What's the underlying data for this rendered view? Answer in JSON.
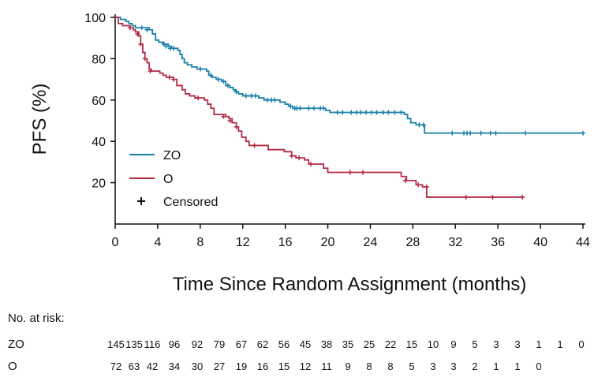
{
  "chart_data": {
    "type": "line",
    "subtype": "kaplan-meier",
    "xlabel": "Time Since Random Assignment (months)",
    "ylabel": "PFS (%)",
    "xlim": [
      0,
      44
    ],
    "ylim": [
      0,
      100
    ],
    "x_ticks": [
      0,
      4,
      8,
      12,
      16,
      20,
      24,
      28,
      32,
      36,
      40,
      44
    ],
    "y_ticks": [
      20,
      40,
      60,
      80,
      100
    ],
    "grid": false,
    "legend": {
      "placement": "bottom-left",
      "entries": [
        {
          "label": "ZO",
          "color": "#1a7fa8",
          "marker": "line"
        },
        {
          "label": "O",
          "color": "#b22a44",
          "marker": "line"
        },
        {
          "label": "Censored",
          "color": "#111111",
          "marker": "plus"
        }
      ]
    },
    "series": [
      {
        "name": "ZO",
        "color": "#1a7fa8",
        "steps": [
          [
            0,
            100
          ],
          [
            0.5,
            99
          ],
          [
            1,
            98
          ],
          [
            1.3,
            97
          ],
          [
            1.6,
            96
          ],
          [
            1.9,
            95
          ],
          [
            3.2,
            94
          ],
          [
            3.5,
            92
          ],
          [
            3.8,
            89
          ],
          [
            4.1,
            88
          ],
          [
            4.5,
            87
          ],
          [
            5,
            86
          ],
          [
            5.3,
            85
          ],
          [
            5.9,
            84
          ],
          [
            6.1,
            82
          ],
          [
            6.3,
            80
          ],
          [
            6.5,
            78
          ],
          [
            6.8,
            77
          ],
          [
            7.2,
            76
          ],
          [
            7.7,
            75
          ],
          [
            8.3,
            75
          ],
          [
            8.6,
            74
          ],
          [
            8.8,
            72
          ],
          [
            9.1,
            71
          ],
          [
            9.5,
            70
          ],
          [
            10,
            69
          ],
          [
            10.4,
            67
          ],
          [
            10.8,
            66
          ],
          [
            11.1,
            65
          ],
          [
            11.3,
            64
          ],
          [
            11.6,
            63
          ],
          [
            12,
            62
          ],
          [
            13.5,
            61
          ],
          [
            14,
            60
          ],
          [
            15.5,
            59
          ],
          [
            16,
            58
          ],
          [
            16.3,
            57
          ],
          [
            16.7,
            56
          ],
          [
            18,
            56
          ],
          [
            19.8,
            55
          ],
          [
            20.2,
            54
          ],
          [
            27.2,
            53
          ],
          [
            27.5,
            51
          ],
          [
            27.8,
            49
          ],
          [
            28.3,
            48
          ],
          [
            29.1,
            44
          ],
          [
            44,
            44
          ]
        ],
        "censored": [
          [
            2.5,
            95
          ],
          [
            3.0,
            94
          ],
          [
            4.6,
            87
          ],
          [
            4.8,
            86
          ],
          [
            5.2,
            85
          ],
          [
            5.5,
            85
          ],
          [
            8.0,
            75
          ],
          [
            9.0,
            72
          ],
          [
            9.7,
            70
          ],
          [
            10.2,
            69
          ],
          [
            10.6,
            67
          ],
          [
            11.4,
            64
          ],
          [
            12.3,
            62
          ],
          [
            12.8,
            62
          ],
          [
            13.2,
            62
          ],
          [
            14.3,
            60
          ],
          [
            14.7,
            60
          ],
          [
            15.0,
            60
          ],
          [
            16.5,
            57
          ],
          [
            16.9,
            56
          ],
          [
            17.1,
            56
          ],
          [
            17.4,
            56
          ],
          [
            18.2,
            56
          ],
          [
            18.7,
            56
          ],
          [
            19.3,
            56
          ],
          [
            19.6,
            56
          ],
          [
            20.9,
            54
          ],
          [
            21.4,
            54
          ],
          [
            22.2,
            54
          ],
          [
            22.7,
            54
          ],
          [
            23.1,
            54
          ],
          [
            23.6,
            54
          ],
          [
            24.1,
            54
          ],
          [
            24.6,
            54
          ],
          [
            25.2,
            54
          ],
          [
            25.7,
            54
          ],
          [
            26.3,
            54
          ],
          [
            26.9,
            54
          ],
          [
            28.6,
            48
          ],
          [
            29.0,
            48
          ],
          [
            31.7,
            44
          ],
          [
            32.8,
            44
          ],
          [
            33.1,
            44
          ],
          [
            33.4,
            44
          ],
          [
            34.4,
            44
          ],
          [
            35.3,
            44
          ],
          [
            35.8,
            44
          ],
          [
            38.6,
            44
          ],
          [
            44.0,
            44
          ]
        ]
      },
      {
        "name": "O",
        "color": "#b22a44",
        "steps": [
          [
            0,
            100
          ],
          [
            0.3,
            97
          ],
          [
            0.7,
            96
          ],
          [
            1.4,
            95
          ],
          [
            1.7,
            94
          ],
          [
            1.9,
            93
          ],
          [
            2.2,
            91
          ],
          [
            2.4,
            87
          ],
          [
            2.6,
            83
          ],
          [
            2.8,
            80
          ],
          [
            3.0,
            78
          ],
          [
            3.2,
            75
          ],
          [
            3.4,
            74
          ],
          [
            4.2,
            73
          ],
          [
            4.5,
            72
          ],
          [
            4.8,
            71
          ],
          [
            5.5,
            70
          ],
          [
            5.8,
            67
          ],
          [
            6.3,
            65
          ],
          [
            6.6,
            63
          ],
          [
            7.0,
            62
          ],
          [
            7.5,
            61
          ],
          [
            8.4,
            60
          ],
          [
            8.7,
            58
          ],
          [
            9.0,
            56
          ],
          [
            9.3,
            53
          ],
          [
            10.4,
            52
          ],
          [
            10.7,
            51
          ],
          [
            11.0,
            49
          ],
          [
            11.4,
            47
          ],
          [
            11.6,
            45
          ],
          [
            11.9,
            42
          ],
          [
            12.3,
            40
          ],
          [
            12.6,
            38
          ],
          [
            14.4,
            36
          ],
          [
            15.9,
            35
          ],
          [
            16.6,
            33
          ],
          [
            17.0,
            32
          ],
          [
            17.8,
            31
          ],
          [
            18.2,
            29
          ],
          [
            19.6,
            27
          ],
          [
            20.0,
            25
          ],
          [
            26.9,
            23
          ],
          [
            27.4,
            21
          ],
          [
            28.3,
            19
          ],
          [
            28.9,
            18
          ],
          [
            29.3,
            13
          ],
          [
            38.4,
            13
          ]
        ],
        "censored": [
          [
            1.4,
            95
          ],
          [
            2.1,
            92
          ],
          [
            2.4,
            87
          ],
          [
            2.8,
            80
          ],
          [
            3.3,
            74
          ],
          [
            5.1,
            71
          ],
          [
            5.5,
            70
          ],
          [
            7.8,
            61
          ],
          [
            10.2,
            52
          ],
          [
            10.8,
            50
          ],
          [
            11.4,
            47
          ],
          [
            13.1,
            38
          ],
          [
            16.6,
            33
          ],
          [
            17.3,
            32
          ],
          [
            18.4,
            29
          ],
          [
            22.1,
            25
          ],
          [
            23.3,
            25
          ],
          [
            27.3,
            21
          ],
          [
            28.5,
            19
          ],
          [
            29.3,
            18
          ],
          [
            33.0,
            13
          ],
          [
            35.5,
            13
          ],
          [
            38.3,
            13
          ]
        ]
      }
    ],
    "risk_table": {
      "title": "No. at risk:",
      "rows": [
        {
          "label": "ZO",
          "color": "#1a7fa8",
          "values": [
            "145",
            "135",
            "116",
            "96",
            "92",
            "79",
            "67",
            "62",
            "56",
            "45",
            "38",
            "35",
            "25",
            "22",
            "15",
            "10",
            "9",
            "5",
            "3",
            "3",
            "1",
            "1",
            "0"
          ]
        },
        {
          "label": "O",
          "color": "#b22a44",
          "values": [
            "72",
            "63",
            "42",
            "34",
            "30",
            "27",
            "19",
            "16",
            "15",
            "12",
            "11",
            "9",
            "8",
            "8",
            "5",
            "3",
            "3",
            "2",
            "1",
            "1",
            "0"
          ]
        }
      ]
    }
  }
}
